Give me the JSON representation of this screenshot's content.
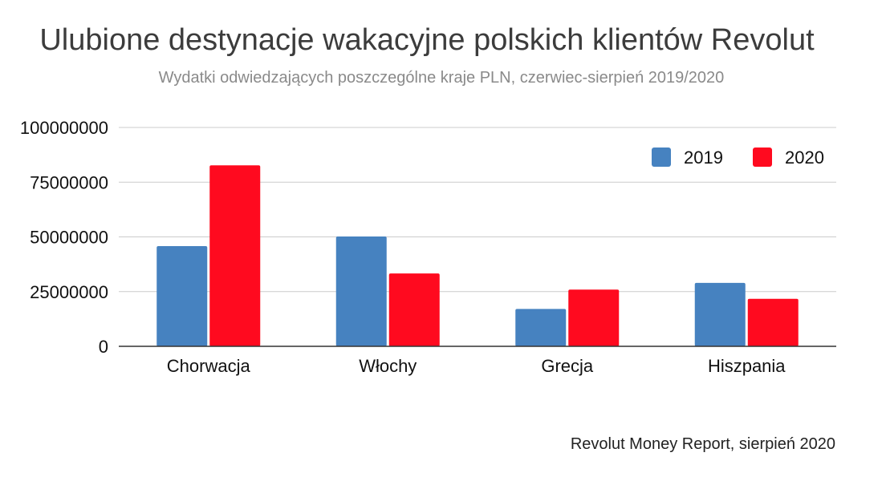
{
  "chart_data": {
    "type": "bar",
    "title": "Ulubione destynacje wakacyjne polskich klientów Revolut",
    "subtitle": "Wydatki odwiedzających poszczególne kraje PLN, czerwiec-sierpień 2019/2020",
    "categories": [
      "Chorwacja",
      "Włochy",
      "Grecja",
      "Hiszpania"
    ],
    "series": [
      {
        "name": "2019",
        "color": "#4682c0",
        "values": [
          45800000,
          50200000,
          17100000,
          29000000
        ]
      },
      {
        "name": "2020",
        "color": "#ff0a1f",
        "values": [
          82700000,
          33300000,
          25900000,
          21700000
        ]
      }
    ],
    "y_ticks": [
      "0",
      "25000000",
      "50000000",
      "75000000",
      "100000000"
    ],
    "ylim": [
      0,
      100000000
    ],
    "grid": true,
    "legend_position": "top-right",
    "xlabel": "",
    "ylabel": ""
  },
  "footer": {
    "source": "Revolut Money Report, sierpień 2020"
  }
}
